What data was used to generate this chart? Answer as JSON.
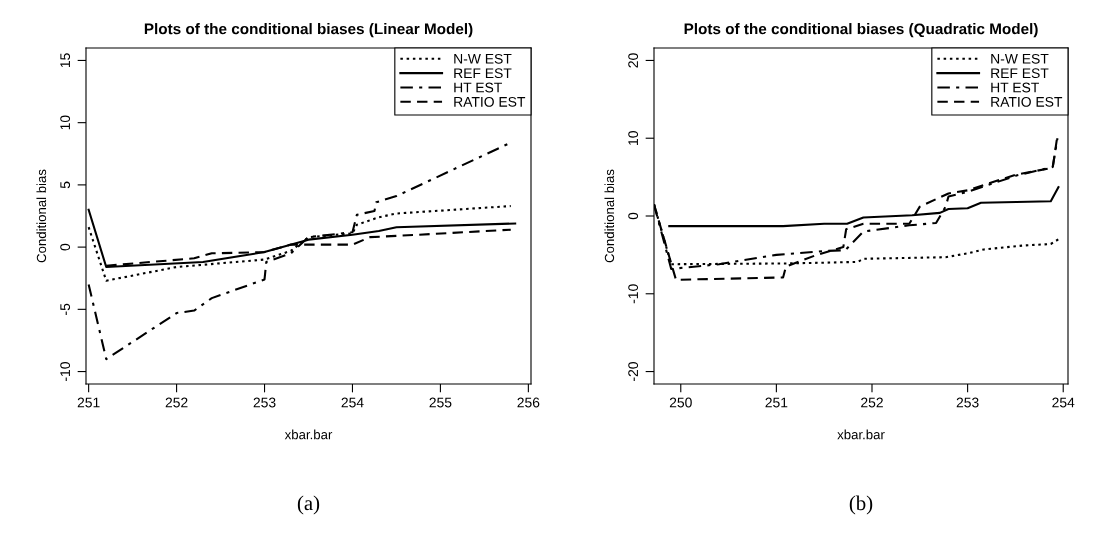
{
  "chart_data": [
    {
      "type": "line",
      "title": "Plots of the conditional biases (Linear Model)",
      "xlabel": "xbar.bar",
      "ylabel": "Conditional bias",
      "xlim": [
        250.97,
        256.03
      ],
      "ylim": [
        -11,
        16
      ],
      "xticks": [
        251,
        252,
        253,
        254,
        255,
        256
      ],
      "yticks": [
        -10,
        -5,
        0,
        5,
        10,
        15
      ],
      "legend": "top right",
      "grid": false,
      "annotations": [
        "(a)"
      ],
      "series": [
        {
          "name": "N-W EST",
          "color": "#000000",
          "line_style": "dotted",
          "x": [
            251.0,
            251.2,
            252.0,
            253.0,
            253.3,
            253.5,
            254.0,
            254.05,
            254.3,
            254.5,
            255.8
          ],
          "values": [
            1.6,
            -2.7,
            -1.6,
            -1.0,
            -0.3,
            0.8,
            1.1,
            1.8,
            2.4,
            2.7,
            3.3
          ]
        },
        {
          "name": "REF EST",
          "color": "#000000",
          "line_style": "solid",
          "x": [
            251.0,
            251.2,
            252.3,
            253.0,
            253.5,
            254.0,
            254.3,
            254.5,
            255.85
          ],
          "values": [
            3.0,
            -1.6,
            -1.2,
            -0.4,
            0.6,
            1.0,
            1.3,
            1.6,
            1.9
          ]
        },
        {
          "name": "HT EST",
          "color": "#000000",
          "line_style": "dashdot",
          "x": [
            251.0,
            251.2,
            252.0,
            252.2,
            252.4,
            253.0,
            253.02,
            253.3,
            253.5,
            254.0,
            254.05,
            254.25,
            254.27,
            254.5,
            255.77
          ],
          "values": [
            -3.0,
            -9.0,
            -5.3,
            -5.1,
            -4.1,
            -2.6,
            -1.2,
            -0.5,
            0.8,
            1.2,
            2.6,
            2.9,
            3.6,
            4.1,
            8.3
          ]
        },
        {
          "name": "RATIO EST",
          "color": "#000000",
          "line_style": "dashed",
          "x": [
            251.2,
            252.2,
            252.4,
            253.0,
            253.3,
            253.6,
            254.0,
            254.2,
            254.5,
            255.8
          ],
          "values": [
            -1.5,
            -0.9,
            -0.5,
            -0.4,
            0.2,
            0.2,
            0.2,
            0.8,
            0.9,
            1.4
          ]
        }
      ]
    },
    {
      "type": "line",
      "title": "Plots of the conditional biases (Quadratic Model)",
      "xlabel": "xbar.bar",
      "ylabel": "Conditional bias",
      "xlim": [
        249.72,
        254.05
      ],
      "ylim": [
        -21.6,
        21.6
      ],
      "xticks": [
        250,
        251,
        252,
        253,
        254
      ],
      "yticks": [
        -20,
        -10,
        0,
        10,
        20
      ],
      "legend": "top right",
      "grid": false,
      "annotations": [
        "(b)"
      ],
      "series": [
        {
          "name": "N-W EST",
          "color": "#000000",
          "line_style": "dotted",
          "x": [
            249.72,
            249.9,
            251.1,
            251.5,
            251.85,
            251.91,
            252.77,
            253.0,
            253.17,
            253.58,
            253.87,
            253.95
          ],
          "values": [
            1.5,
            -6.2,
            -6.1,
            -6.0,
            -5.9,
            -5.5,
            -5.3,
            -4.8,
            -4.3,
            -3.8,
            -3.6,
            -3.0
          ]
        },
        {
          "name": "REF EST",
          "color": "#000000",
          "line_style": "solid",
          "x": [
            249.88,
            251.07,
            251.5,
            251.74,
            251.91,
            252.42,
            252.71,
            252.8,
            253.0,
            253.14,
            253.51,
            253.87,
            253.95
          ],
          "values": [
            -1.3,
            -1.3,
            -1.0,
            -1.0,
            -0.2,
            0.1,
            0.4,
            0.9,
            1.0,
            1.7,
            1.8,
            1.9,
            3.7
          ]
        },
        {
          "name": "HT EST",
          "color": "#000000",
          "line_style": "dashdot",
          "x": [
            249.72,
            249.9,
            250.4,
            251.0,
            251.5,
            251.72,
            251.91,
            252.39,
            252.67,
            252.77,
            252.8,
            253.0,
            253.51,
            253.89,
            253.94
          ],
          "values": [
            1.5,
            -6.8,
            -6.2,
            -5.0,
            -4.5,
            -4.4,
            -2.0,
            -1.2,
            -0.9,
            1.2,
            2.5,
            3.1,
            5.2,
            6.3,
            10.0
          ]
        },
        {
          "name": "RATIO EST",
          "color": "#000000",
          "line_style": "dashed",
          "x": [
            249.72,
            249.95,
            251.07,
            251.1,
            251.4,
            251.7,
            251.73,
            251.91,
            252.39,
            252.5,
            252.8,
            253.0,
            253.5,
            253.89,
            253.94
          ],
          "values": [
            1.5,
            -8.2,
            -7.9,
            -6.5,
            -5.1,
            -4.0,
            -1.7,
            -1.0,
            -1.0,
            1.2,
            2.9,
            3.3,
            5.3,
            6.2,
            10.4
          ]
        }
      ]
    }
  ]
}
